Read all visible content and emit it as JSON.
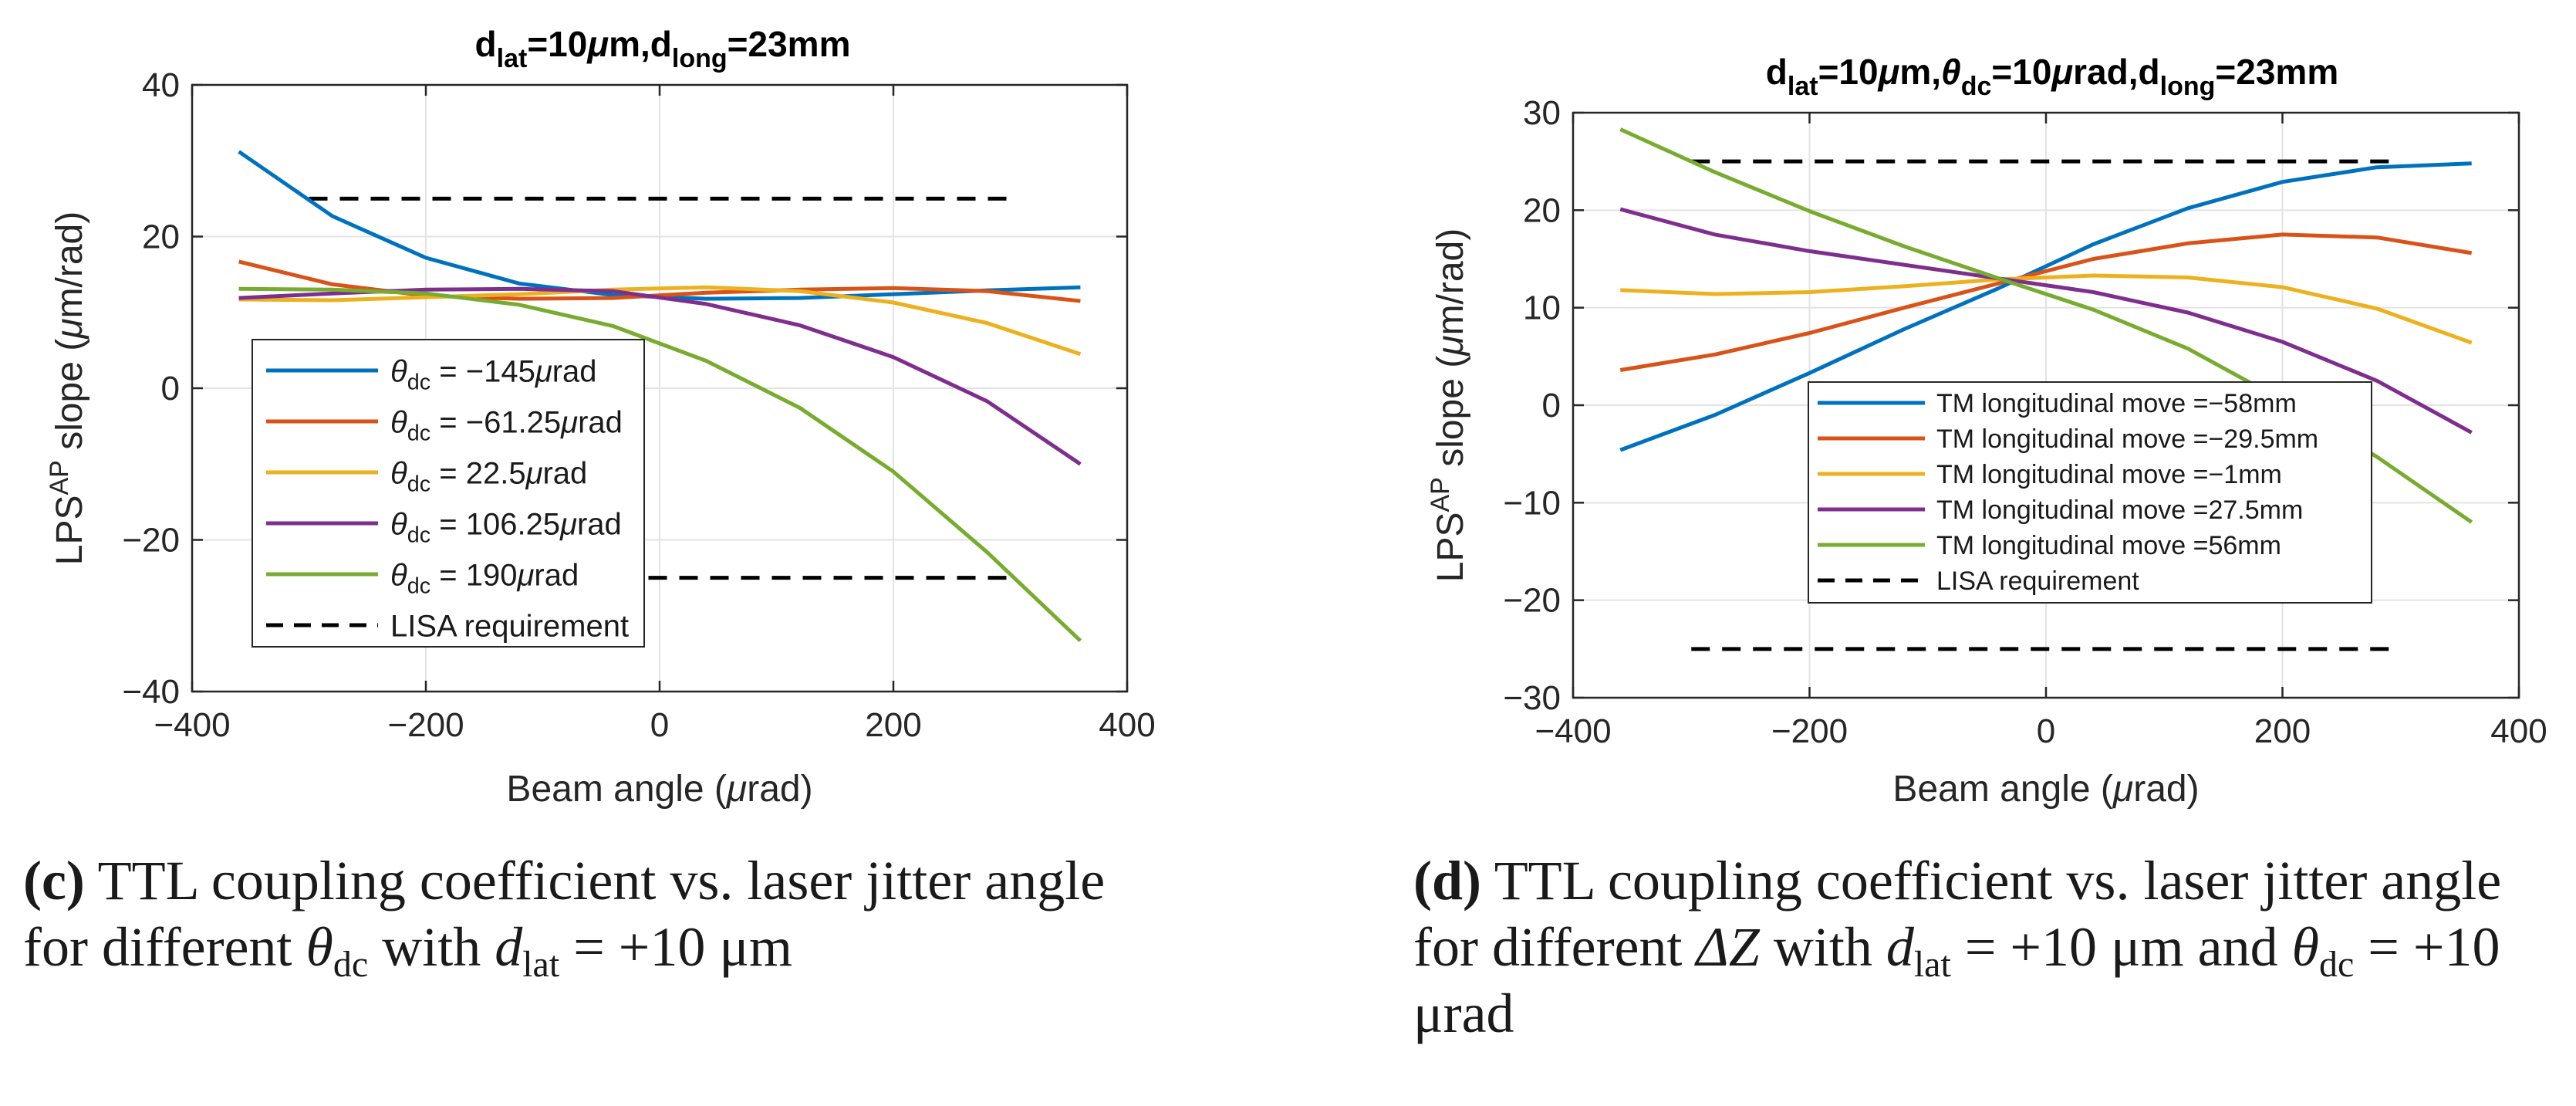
{
  "chart_data": [
    {
      "type": "line",
      "title": {
        "prefix": "d",
        "sub1": "lat",
        "mid1": "=10",
        "mu": "μ",
        "mid2": "m,d",
        "sub2": "long",
        "tail": "=23mm"
      },
      "xlabel": {
        "text1": "Beam angle (",
        "mu": "μ",
        "text2": "rad)"
      },
      "ylabel": {
        "text1": "LPS",
        "sup": "AP",
        "text2": " slope (",
        "mu": "μ",
        "text3": "m/rad)"
      },
      "xlim": [
        -400,
        400
      ],
      "ylim": [
        -40,
        40
      ],
      "xticks": [
        -400,
        -200,
        0,
        200,
        400
      ],
      "yticks": [
        -40,
        -20,
        0,
        20,
        40
      ],
      "xtick_labels": [
        "−400",
        "−200",
        "0",
        "200",
        "400"
      ],
      "ytick_labels": [
        "−40",
        "−20",
        "0",
        "20",
        "40"
      ],
      "grid": true,
      "legend_position": "lower-left",
      "x": [
        -360,
        -280,
        -200,
        -120,
        -40,
        40,
        120,
        200,
        280,
        360
      ],
      "series": [
        {
          "name": "θdc = −145μrad",
          "legend": {
            "theta": "θ",
            "sub": "dc",
            "rest": " = −145",
            "mu": "μ",
            "unit": "rad"
          },
          "color": "#0072BD",
          "values": [
            31.2,
            22.7,
            17.2,
            13.8,
            12.3,
            11.8,
            11.9,
            12.4,
            12.9,
            13.3
          ]
        },
        {
          "name": "θdc = −61.25μrad",
          "legend": {
            "theta": "θ",
            "sub": "dc",
            "rest": " = −61.25",
            "mu": "μ",
            "unit": "rad"
          },
          "color": "#D95319",
          "values": [
            16.7,
            13.7,
            12.2,
            11.8,
            11.9,
            12.6,
            13.0,
            13.2,
            12.8,
            11.5
          ]
        },
        {
          "name": "θdc = 22.5μrad",
          "legend": {
            "theta": "θ",
            "sub": "dc",
            "rest": " = 22.5",
            "mu": "μ",
            "unit": "rad"
          },
          "color": "#EDB120",
          "values": [
            11.7,
            11.6,
            12.0,
            12.4,
            13.0,
            13.3,
            12.8,
            11.3,
            8.6,
            4.5
          ]
        },
        {
          "name": "θdc = 106.25μrad",
          "legend": {
            "theta": "θ",
            "sub": "dc",
            "rest": " = 106.25",
            "mu": "μ",
            "unit": "rad"
          },
          "color": "#7E2F8E",
          "values": [
            11.9,
            12.5,
            13.0,
            13.1,
            12.8,
            11.1,
            8.3,
            4.1,
            -1.7,
            -10.0
          ]
        },
        {
          "name": "θdc = 190μrad",
          "legend": {
            "theta": "θ",
            "sub": "dc",
            "rest": " = 190",
            "mu": "μ",
            "unit": "rad"
          },
          "color": "#77AC30",
          "values": [
            13.1,
            13.0,
            12.5,
            11.0,
            8.2,
            3.6,
            -2.6,
            -11.0,
            -21.6,
            -33.3
          ]
        }
      ],
      "requirement": {
        "name": "LISA requirement",
        "color": "#000000",
        "x": [
          -300,
          300
        ],
        "levels": [
          25,
          -25
        ]
      }
    },
    {
      "type": "line",
      "title": {
        "prefix": "d",
        "sub1": "lat",
        "mid1": "=10",
        "mu": "μ",
        "mid2": "m,",
        "theta": "θ",
        "sub2": "dc",
        "mid3": "=10",
        "mu2": "μ",
        "mid4": "rad,d",
        "sub3": "long",
        "tail": "=23mm"
      },
      "xlabel": {
        "text1": "Beam angle (",
        "mu": "μ",
        "text2": "rad)"
      },
      "ylabel": {
        "text1": "LPS",
        "sup": "AP",
        "text2": " slope (",
        "mu": "μ",
        "text3": "m/rad)"
      },
      "xlim": [
        -400,
        400
      ],
      "ylim": [
        -30,
        30
      ],
      "xticks": [
        -400,
        -200,
        0,
        200,
        400
      ],
      "yticks": [
        -30,
        -20,
        -10,
        0,
        10,
        20,
        30
      ],
      "xtick_labels": [
        "−400",
        "−200",
        "0",
        "200",
        "400"
      ],
      "ytick_labels": [
        "−30",
        "−20",
        "−10",
        "0",
        "10",
        "20",
        "30"
      ],
      "grid": true,
      "legend_position": "lower-center",
      "x": [
        -360,
        -280,
        -200,
        -120,
        -40,
        40,
        120,
        200,
        280,
        360
      ],
      "series": [
        {
          "name": "TM longitudinal move =−58mm",
          "color": "#0072BD",
          "values": [
            -4.6,
            -1.0,
            3.3,
            7.8,
            12.0,
            16.5,
            20.2,
            22.9,
            24.4,
            24.8
          ]
        },
        {
          "name": "TM longitudinal move =−29.5mm",
          "color": "#D95319",
          "values": [
            3.6,
            5.2,
            7.4,
            10.0,
            12.5,
            15.0,
            16.6,
            17.5,
            17.2,
            15.6
          ]
        },
        {
          "name": "TM longitudinal move =−1mm",
          "color": "#EDB120",
          "values": [
            11.8,
            11.4,
            11.6,
            12.2,
            12.9,
            13.3,
            13.1,
            12.1,
            9.9,
            6.4
          ]
        },
        {
          "name": "TM longitudinal move =27.5mm",
          "color": "#7E2F8E",
          "values": [
            20.1,
            17.5,
            15.8,
            14.4,
            13.0,
            11.6,
            9.5,
            6.5,
            2.5,
            -2.8
          ]
        },
        {
          "name": "TM longitudinal move =56mm",
          "color": "#77AC30",
          "values": [
            28.3,
            23.9,
            19.9,
            16.3,
            13.0,
            9.8,
            5.8,
            0.5,
            -5.3,
            -12.0
          ]
        }
      ],
      "requirement": {
        "name": "LISA requirement",
        "color": "#000000",
        "x": [
          -300,
          300
        ],
        "levels": [
          25,
          -25
        ]
      }
    }
  ],
  "captions": {
    "c": {
      "label": "(c)",
      "text1": " TTL coupling coefficient vs.  laser jitter angle for different ",
      "theta": "θ",
      "theta_sub": "dc",
      "text2": " with ",
      "d": "d",
      "d_sub": "lat",
      "text3": " = +10 μm"
    },
    "d": {
      "label": "(d)",
      "text1": " TTL coupling coefficient vs.  laser jitter angle for different ",
      "delta": "ΔZ",
      "text2": " with ",
      "d": "d",
      "d_sub": "lat",
      "text3": " = +10 μm and ",
      "theta": "θ",
      "theta_sub": "dc",
      "text4": " = +10 μrad"
    }
  }
}
